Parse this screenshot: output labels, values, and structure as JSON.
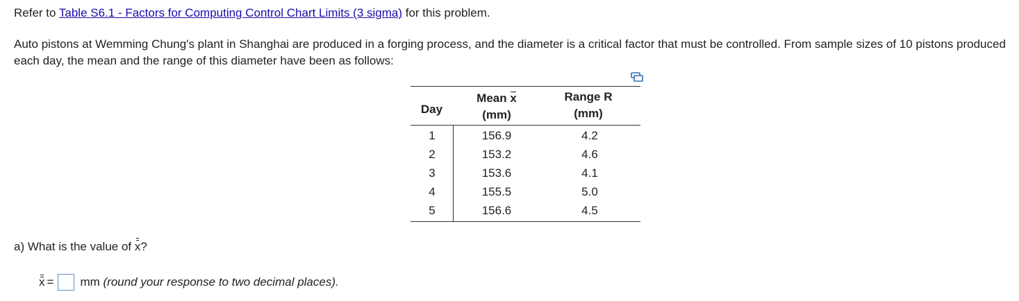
{
  "intro": {
    "prefix": "Refer to ",
    "link_text": "Table S6.1 - Factors for Computing Control Chart Limits (3 sigma)",
    "suffix": " for this problem."
  },
  "problem_text": "Auto pistons at Wemming Chung's plant in Shanghai are produced in a forging process, and the diameter is a critical factor that must be controlled. From sample sizes of 10 pistons produced each day, the mean and the range of this diameter have been as follows:",
  "copy_icon": "copy-table-icon",
  "table": {
    "headers": {
      "day": "Day",
      "mean_prefix": "Mean ",
      "mean_symbol": "x",
      "mean_unit": "(mm)",
      "range_label": "Range R",
      "range_unit": "(mm)"
    },
    "rows": [
      {
        "day": "1",
        "mean": "156.9",
        "range": "4.2"
      },
      {
        "day": "2",
        "mean": "153.2",
        "range": "4.6"
      },
      {
        "day": "3",
        "mean": "153.6",
        "range": "4.1"
      },
      {
        "day": "4",
        "mean": "155.5",
        "range": "5.0"
      },
      {
        "day": "5",
        "mean": "156.6",
        "range": "4.5"
      }
    ]
  },
  "question": {
    "prefix": "a) What is the value of ",
    "symbol": "x",
    "suffix": "?"
  },
  "answer": {
    "symbol": "x",
    "equals": "=",
    "value": "",
    "unit": "mm",
    "hint": "(round your response to two decimal places)."
  }
}
